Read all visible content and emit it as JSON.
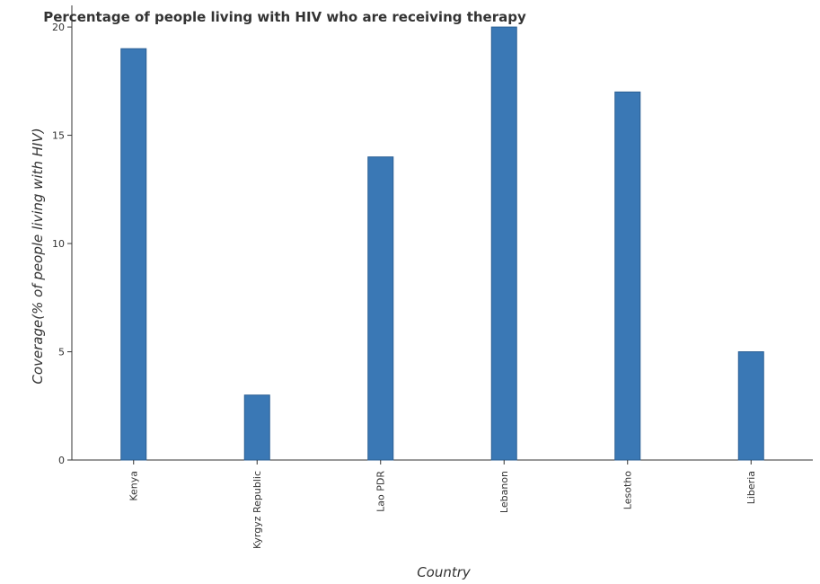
{
  "chart_data": {
    "type": "bar",
    "title": "Percentage of people living with HIV who are receiving therapy",
    "xlabel": "Country",
    "ylabel": "Coverage(% of people living with HIV)",
    "categories": [
      "Kenya",
      "Kyrgyz Republic",
      "Lao PDR",
      "Lebanon",
      "Lesotho",
      "Liberia"
    ],
    "values": [
      19,
      3,
      14,
      20,
      17,
      5
    ],
    "ylim": [
      0,
      21
    ],
    "yticks": [
      0,
      5,
      10,
      15,
      20
    ],
    "grid": false,
    "legend": "none",
    "colors": {
      "bar_fill": "#3a78b5",
      "bar_edge": "#2a5f94",
      "axis": "#333333"
    }
  }
}
